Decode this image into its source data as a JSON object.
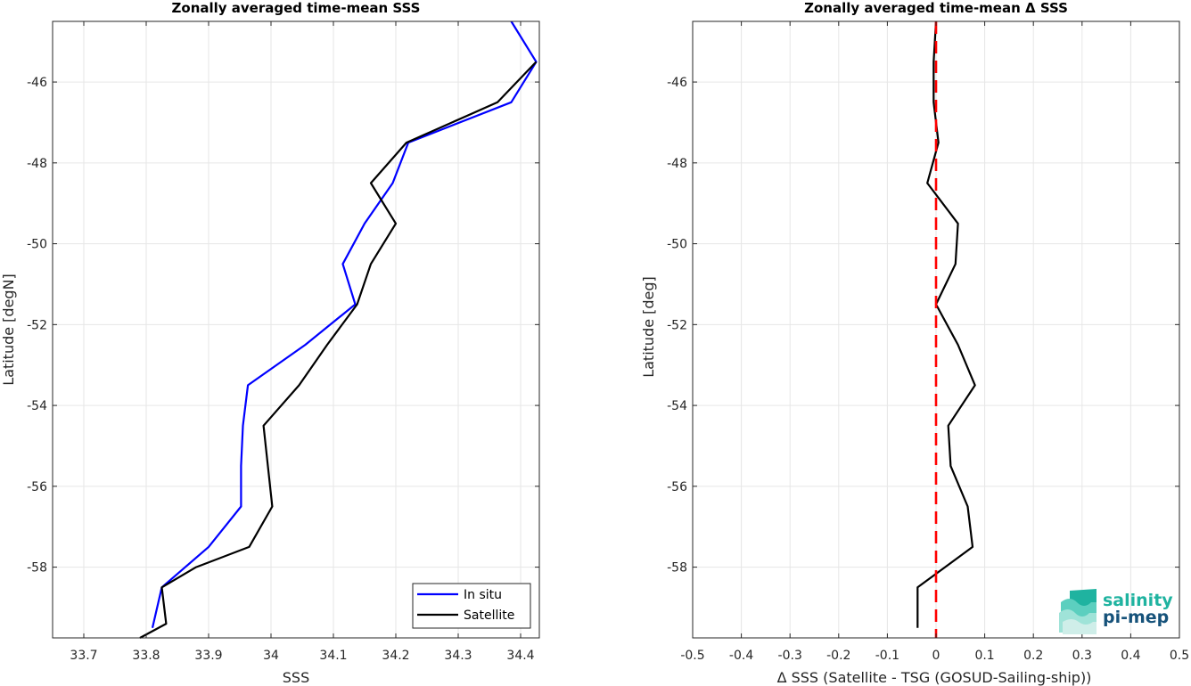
{
  "chart_data": [
    {
      "type": "line",
      "title": "Zonally averaged time-mean SSS",
      "xlabel": "SSS",
      "ylabel": "Latitude [degN]",
      "xlim": [
        33.65,
        34.43
      ],
      "ylim": [
        -59.75,
        -44.5
      ],
      "xticks": [
        33.7,
        33.8,
        33.9,
        34.0,
        34.1,
        34.2,
        34.3,
        34.4
      ],
      "xtick_labels": [
        "33.7",
        "33.8",
        "33.9",
        "34",
        "34.1",
        "34.2",
        "34.3",
        "34.4"
      ],
      "yticks": [
        -58,
        -56,
        -54,
        -52,
        -50,
        -48,
        -46
      ],
      "ytick_labels": [
        "-58",
        "-56",
        "-54",
        "-52",
        "-50",
        "-48",
        "-46"
      ],
      "grid": true,
      "legend_position": "bottom-right",
      "series": [
        {
          "name": "In situ",
          "color": "#0000ff",
          "points": [
            [
              34.385,
              -44.5
            ],
            [
              34.425,
              -45.5
            ],
            [
              34.385,
              -46.5
            ],
            [
              34.22,
              -47.5
            ],
            [
              34.195,
              -48.5
            ],
            [
              34.15,
              -49.5
            ],
            [
              34.115,
              -50.5
            ],
            [
              34.135,
              -51.5
            ],
            [
              34.055,
              -52.5
            ],
            [
              33.963,
              -53.5
            ],
            [
              33.955,
              -54.5
            ],
            [
              33.952,
              -55.5
            ],
            [
              33.952,
              -56.5
            ],
            [
              33.9,
              -57.5
            ],
            [
              33.825,
              -58.5
            ],
            [
              33.81,
              -59.5
            ]
          ]
        },
        {
          "name": "Satellite",
          "color": "#000000",
          "points": [
            [
              34.425,
              -45.5
            ],
            [
              34.363,
              -46.5
            ],
            [
              34.217,
              -47.5
            ],
            [
              34.16,
              -48.5
            ],
            [
              34.2,
              -49.5
            ],
            [
              34.16,
              -50.5
            ],
            [
              34.138,
              -51.5
            ],
            [
              34.09,
              -52.5
            ],
            [
              34.045,
              -53.5
            ],
            [
              33.988,
              -54.5
            ],
            [
              33.995,
              -55.5
            ],
            [
              34.002,
              -56.5
            ],
            [
              33.965,
              -57.5
            ],
            [
              33.88,
              -58.0
            ],
            [
              33.825,
              -58.5
            ],
            [
              33.832,
              -59.4
            ],
            [
              33.79,
              -59.75
            ]
          ]
        }
      ]
    },
    {
      "type": "line",
      "title": "Zonally averaged time-mean Δ SSS",
      "xlabel": "Δ SSS (Satellite - TSG (GOSUD-Sailing-ship))",
      "ylabel": "Latitude [deg]",
      "xlim": [
        -0.5,
        0.5
      ],
      "ylim": [
        -59.75,
        -44.5
      ],
      "xticks": [
        -0.5,
        -0.4,
        -0.3,
        -0.2,
        -0.1,
        0,
        0.1,
        0.2,
        0.3,
        0.4,
        0.5
      ],
      "xtick_labels": [
        "-0.5",
        "-0.4",
        "-0.3",
        "-0.2",
        "-0.1",
        "0",
        "0.1",
        "0.2",
        "0.3",
        "0.4",
        "0.5"
      ],
      "yticks": [
        -58,
        -56,
        -54,
        -52,
        -50,
        -48,
        -46
      ],
      "ytick_labels": [
        "-58",
        "-56",
        "-54",
        "-52",
        "-50",
        "-48",
        "-46"
      ],
      "grid": true,
      "reference_line": {
        "x": 0,
        "color": "#ff0000",
        "style": "dashed"
      },
      "series": [
        {
          "color": "#000000",
          "points": [
            [
              0.0,
              -44.5
            ],
            [
              -0.005,
              -45.5
            ],
            [
              -0.005,
              -46.5
            ],
            [
              0.005,
              -47.5
            ],
            [
              -0.018,
              -48.5
            ],
            [
              0.045,
              -49.5
            ],
            [
              0.04,
              -50.5
            ],
            [
              0.0,
              -51.5
            ],
            [
              0.045,
              -52.5
            ],
            [
              0.08,
              -53.5
            ],
            [
              0.025,
              -54.5
            ],
            [
              0.03,
              -55.5
            ],
            [
              0.065,
              -56.5
            ],
            [
              0.075,
              -57.5
            ],
            [
              -0.038,
              -58.5
            ],
            [
              -0.038,
              -59.5
            ]
          ]
        }
      ]
    }
  ],
  "logo": {
    "line1": "salinity",
    "line2": "pi-mep",
    "color1": "#1fb3a0",
    "color2": "#16527a"
  }
}
